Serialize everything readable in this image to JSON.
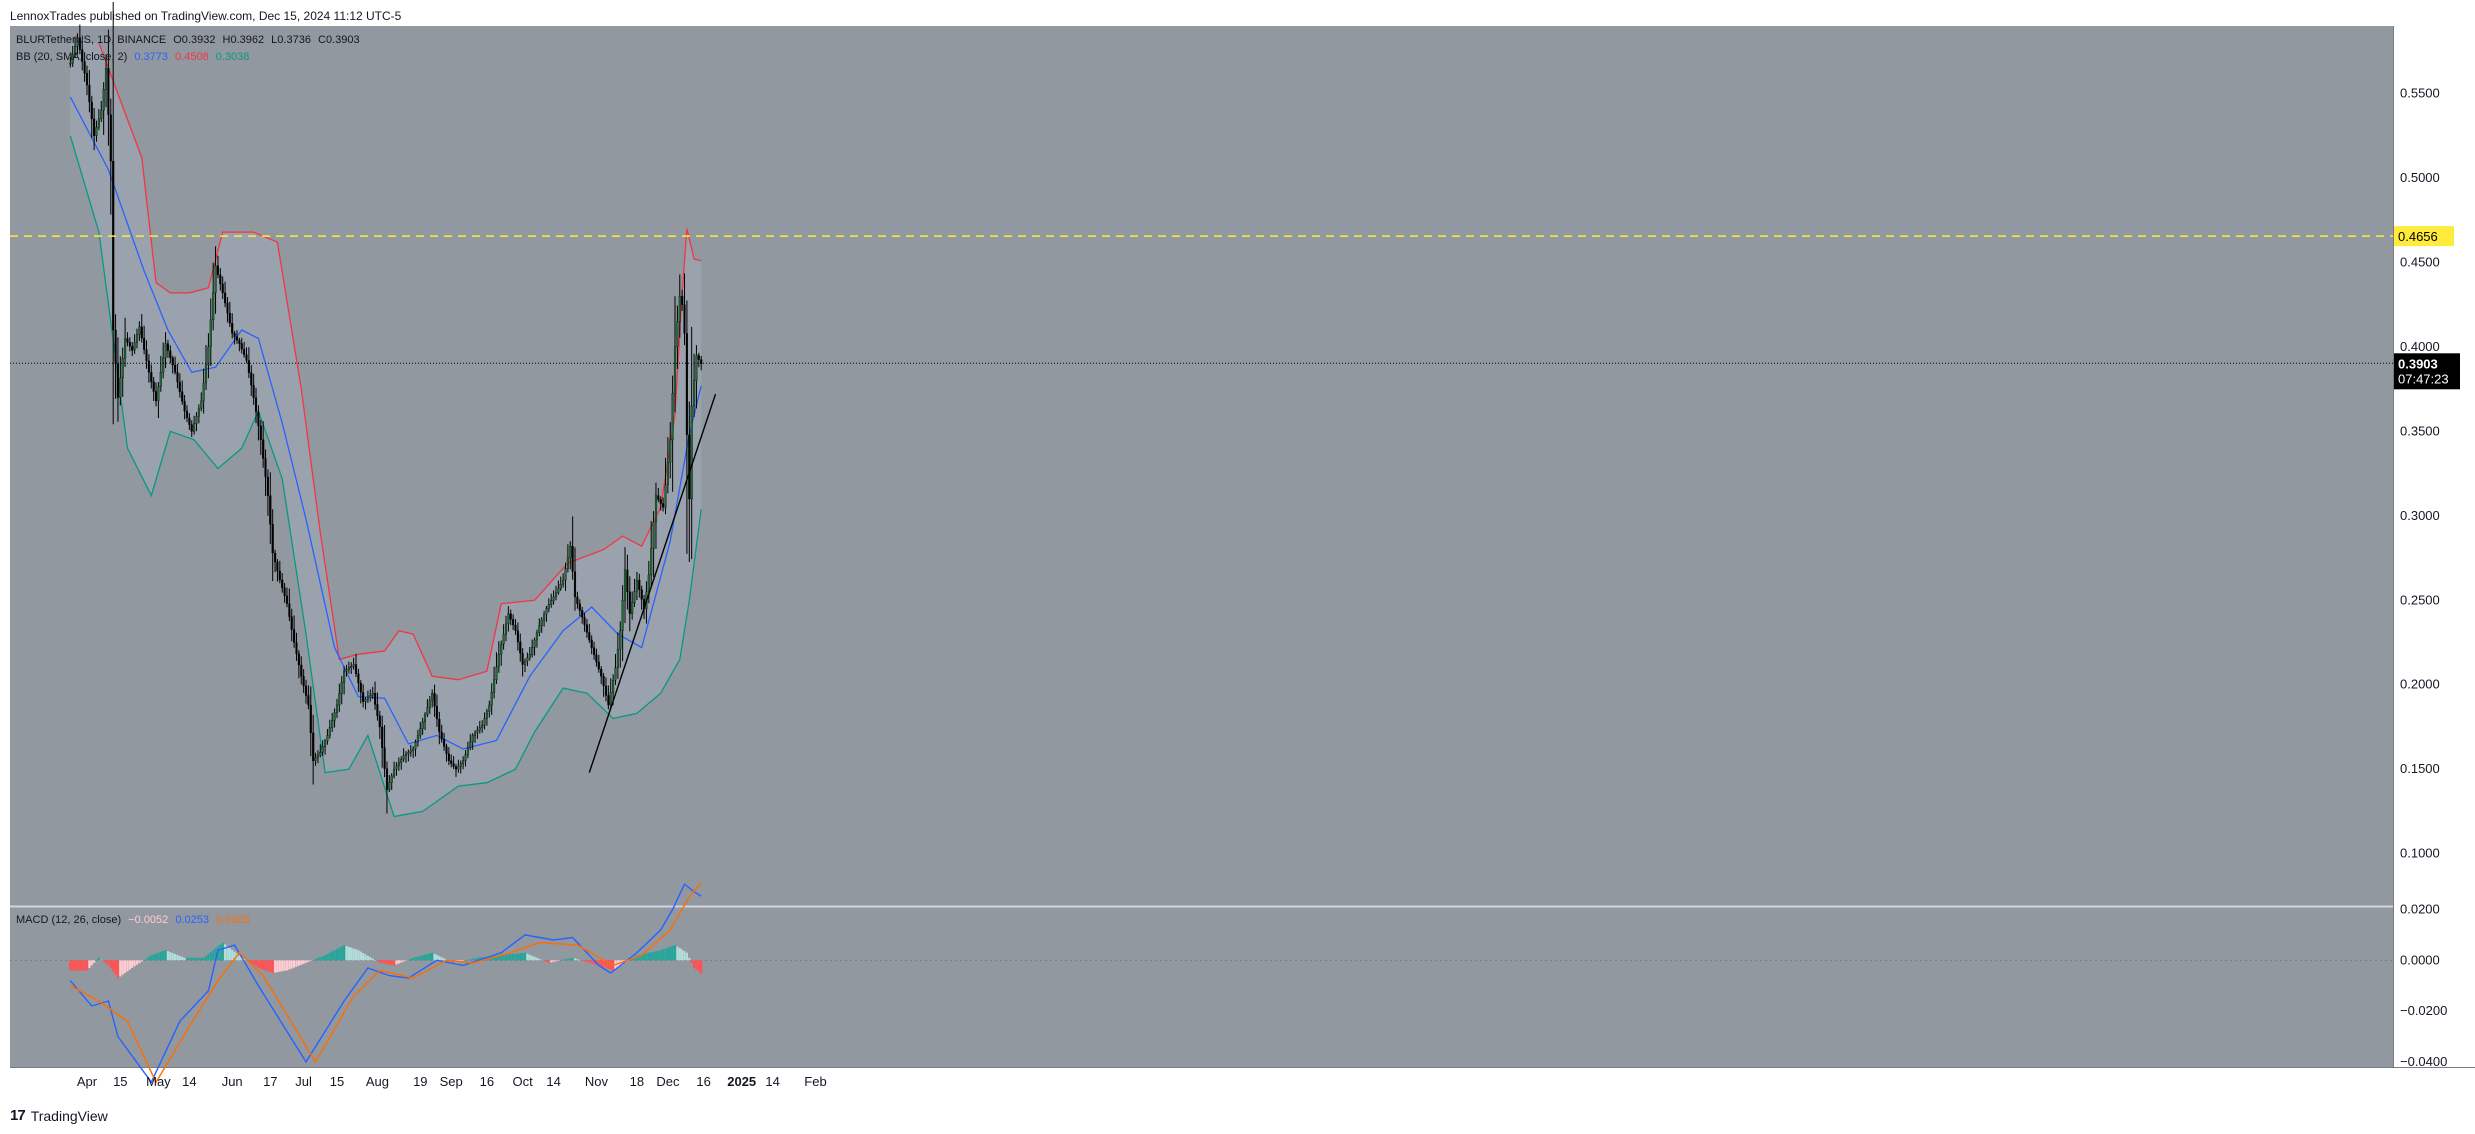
{
  "header": {
    "published": "LennoxTrades published on TradingView.com, Dec 15, 2024 11:12 UTC-5"
  },
  "footer": {
    "brand": "TradingView"
  },
  "colors": {
    "pane_bg": "#9298a0",
    "bb_fill": "#9ba6b1",
    "bb_upper": "#f23645",
    "bb_basis": "#2962ff",
    "bb_lower": "#089981",
    "candle_up": "#1e6b34",
    "candle_down": "#000000",
    "resistance": "#ffeb3b",
    "trendline": "#000000",
    "macd_line": "#2962ff",
    "signal_line": "#ff6d00",
    "hist_pos_strong": "#26a69a",
    "hist_pos_weak": "#b2dfdb",
    "hist_neg_strong": "#ff5252",
    "hist_neg_weak": "#ffcdd2"
  },
  "legend_main": {
    "symbol": "BLURTetherUS, 1D, BINANCE",
    "open": "O0.3932",
    "high": "H0.3962",
    "low": "L0.3736",
    "close": "C0.3903",
    "bb_label": "BB (20, SMA, close, 2)",
    "bb_basis": "0.3773",
    "bb_upper": "0.4508",
    "bb_lower": "0.3038"
  },
  "legend_macd": {
    "label": "MACD (12, 26, close)",
    "hist": "−0.0052",
    "macd": "0.0253",
    "signal": "0.0305"
  },
  "chart_data": {
    "type": "candlestick",
    "interval": "1D",
    "price_axis": {
      "ticks": [
        "0.5500",
        "0.5000",
        "0.4500",
        "0.4000",
        "0.3500",
        "0.3000",
        "0.2500",
        "0.2000",
        "0.1500",
        "0.1000"
      ],
      "ylim": [
        0.069,
        0.59
      ]
    },
    "x_axis": {
      "ticks": [
        "Apr",
        "15",
        "May",
        "14",
        "Jun",
        "17",
        "Jul",
        "15",
        "Aug",
        "19",
        "Sep",
        "16",
        "Oct",
        "14",
        "Nov",
        "18",
        "Dec",
        "16",
        "2025",
        "14",
        "Feb"
      ]
    },
    "last_price": {
      "value": 0.3903,
      "label": "0.3903",
      "countdown": "07:47:23"
    },
    "resistance": {
      "value": 0.4656,
      "label": "0.4656"
    },
    "trendline": {
      "from": {
        "x": "Oct 29",
        "y": 0.148
      },
      "to": {
        "x": "Dec 21",
        "y": 0.372
      }
    },
    "price_path": [
      [
        "Mar 25",
        0.568
      ],
      [
        "Mar 28",
        0.583
      ],
      [
        "Apr 1",
        0.555
      ],
      [
        "Apr 4",
        0.525
      ],
      [
        "Apr 7",
        0.54
      ],
      [
        "Apr 9",
        0.565
      ],
      [
        "Apr 11",
        0.51
      ],
      [
        "Apr 12",
        0.41
      ],
      [
        "Apr 14",
        0.37
      ],
      [
        "Apr 17",
        0.405
      ],
      [
        "Apr 20",
        0.398
      ],
      [
        "Apr 23",
        0.412
      ],
      [
        "Apr 27",
        0.385
      ],
      [
        "Apr 30",
        0.368
      ],
      [
        "May 4",
        0.402
      ],
      [
        "May 8",
        0.385
      ],
      [
        "May 12",
        0.362
      ],
      [
        "May 15",
        0.35
      ],
      [
        "May 19",
        0.368
      ],
      [
        "May 22",
        0.4
      ],
      [
        "May 25",
        0.448
      ],
      [
        "May 28",
        0.432
      ],
      [
        "Jun 1",
        0.408
      ],
      [
        "Jun 4",
        0.402
      ],
      [
        "Jun 7",
        0.392
      ],
      [
        "Jun 10",
        0.37
      ],
      [
        "Jun 13",
        0.345
      ],
      [
        "Jun 16",
        0.312
      ],
      [
        "Jun 18",
        0.278
      ],
      [
        "Jun 21",
        0.262
      ],
      [
        "Jun 24",
        0.248
      ],
      [
        "Jun 27",
        0.225
      ],
      [
        "Jun 30",
        0.205
      ],
      [
        "Jul 3",
        0.188
      ],
      [
        "Jul 5",
        0.155
      ],
      [
        "Jul 8",
        0.16
      ],
      [
        "Jul 11",
        0.17
      ],
      [
        "Jul 15",
        0.188
      ],
      [
        "Jul 18",
        0.208
      ],
      [
        "Jul 22",
        0.212
      ],
      [
        "Jul 26",
        0.19
      ],
      [
        "Jul 30",
        0.195
      ],
      [
        "Aug 2",
        0.175
      ],
      [
        "Aug 5",
        0.138
      ],
      [
        "Aug 8",
        0.15
      ],
      [
        "Aug 12",
        0.158
      ],
      [
        "Aug 16",
        0.162
      ],
      [
        "Aug 20",
        0.178
      ],
      [
        "Aug 24",
        0.195
      ],
      [
        "Aug 27",
        0.172
      ],
      [
        "Aug 31",
        0.155
      ],
      [
        "Sep 3",
        0.15
      ],
      [
        "Sep 6",
        0.155
      ],
      [
        "Sep 10",
        0.17
      ],
      [
        "Sep 14",
        0.176
      ],
      [
        "Sep 17",
        0.188
      ],
      [
        "Sep 21",
        0.218
      ],
      [
        "Sep 25",
        0.242
      ],
      [
        "Sep 28",
        0.232
      ],
      [
        "Oct 1",
        0.212
      ],
      [
        "Oct 4",
        0.218
      ],
      [
        "Oct 8",
        0.235
      ],
      [
        "Oct 11",
        0.245
      ],
      [
        "Oct 14",
        0.252
      ],
      [
        "Oct 18",
        0.262
      ],
      [
        "Oct 21",
        0.282
      ],
      [
        "Oct 23",
        0.252
      ],
      [
        "Oct 26",
        0.24
      ],
      [
        "Oct 30",
        0.222
      ],
      [
        "Nov 3",
        0.205
      ],
      [
        "Nov 6",
        0.188
      ],
      [
        "Nov 9",
        0.21
      ],
      [
        "Nov 11",
        0.232
      ],
      [
        "Nov 13",
        0.268
      ],
      [
        "Nov 15",
        0.242
      ],
      [
        "Nov 18",
        0.262
      ],
      [
        "Nov 21",
        0.245
      ],
      [
        "Nov 23",
        0.265
      ],
      [
        "Nov 26",
        0.312
      ],
      [
        "Nov 29",
        0.305
      ],
      [
        "Dec 2",
        0.345
      ],
      [
        "Dec 4",
        0.4
      ],
      [
        "Dec 6",
        0.43
      ],
      [
        "Dec 7",
        0.425
      ],
      [
        "Dec 8",
        0.408
      ],
      [
        "Dec 9",
        0.348
      ],
      [
        "Dec 10",
        0.31
      ],
      [
        "Dec 11",
        0.365
      ],
      [
        "Dec 13",
        0.395
      ],
      [
        "Dec 15",
        0.39
      ]
    ],
    "bb_upper": [
      [
        "Apr 6",
        0.58
      ],
      [
        "Apr 24",
        0.512
      ],
      [
        "Apr 30",
        0.438
      ],
      [
        "May 6",
        0.432
      ],
      [
        "May 14",
        0.432
      ],
      [
        "May 22",
        0.435
      ],
      [
        "May 28",
        0.468
      ],
      [
        "Jun 10",
        0.468
      ],
      [
        "Jun 20",
        0.462
      ],
      [
        "Jun 30",
        0.375
      ],
      [
        "Jul 8",
        0.29
      ],
      [
        "Jul 16",
        0.215
      ],
      [
        "Jul 24",
        0.218
      ],
      [
        "Aug 4",
        0.22
      ],
      [
        "Aug 10",
        0.232
      ],
      [
        "Aug 16",
        0.23
      ],
      [
        "Aug 24",
        0.205
      ],
      [
        "Sep 4",
        0.203
      ],
      [
        "Sep 16",
        0.208
      ],
      [
        "Sep 22",
        0.248
      ],
      [
        "Oct 6",
        0.25
      ],
      [
        "Oct 20",
        0.272
      ],
      [
        "Nov 4",
        0.28
      ],
      [
        "Nov 12",
        0.288
      ],
      [
        "Nov 20",
        0.282
      ],
      [
        "Nov 28",
        0.305
      ],
      [
        "Dec 4",
        0.36
      ],
      [
        "Dec 7",
        0.432
      ],
      [
        "Dec 9",
        0.47
      ],
      [
        "Dec 12",
        0.452
      ],
      [
        "Dec 15",
        0.451
      ]
    ],
    "bb_basis": [
      [
        "Mar 25",
        0.548
      ],
      [
        "Apr 10",
        0.505
      ],
      [
        "Apr 25",
        0.445
      ],
      [
        "May 5",
        0.41
      ],
      [
        "May 15",
        0.385
      ],
      [
        "May 25",
        0.388
      ],
      [
        "Jun 5",
        0.41
      ],
      [
        "Jun 12",
        0.405
      ],
      [
        "Jun 22",
        0.355
      ],
      [
        "Jul 2",
        0.298
      ],
      [
        "Jul 14",
        0.222
      ],
      [
        "Jul 24",
        0.193
      ],
      [
        "Aug 4",
        0.192
      ],
      [
        "Aug 14",
        0.165
      ],
      [
        "Aug 26",
        0.17
      ],
      [
        "Sep 6",
        0.162
      ],
      [
        "Sep 20",
        0.167
      ],
      [
        "Oct 4",
        0.205
      ],
      [
        "Oct 18",
        0.232
      ],
      [
        "Oct 30",
        0.246
      ],
      [
        "Nov 10",
        0.23
      ],
      [
        "Nov 20",
        0.222
      ],
      [
        "Dec 2",
        0.285
      ],
      [
        "Dec 10",
        0.348
      ],
      [
        "Dec 15",
        0.377
      ]
    ],
    "bb_lower": [
      [
        "Mar 25",
        0.525
      ],
      [
        "Apr 6",
        0.468
      ],
      [
        "Apr 18",
        0.34
      ],
      [
        "Apr 28",
        0.312
      ],
      [
        "May 6",
        0.35
      ],
      [
        "May 16",
        0.345
      ],
      [
        "May 26",
        0.328
      ],
      [
        "Jun 5",
        0.34
      ],
      [
        "Jun 12",
        0.362
      ],
      [
        "Jun 22",
        0.322
      ],
      [
        "Jul 2",
        0.23
      ],
      [
        "Jul 10",
        0.148
      ],
      [
        "Jul 20",
        0.15
      ],
      [
        "Jul 28",
        0.17
      ],
      [
        "Aug 8",
        0.122
      ],
      [
        "Aug 20",
        0.125
      ],
      [
        "Sep 4",
        0.14
      ],
      [
        "Sep 16",
        0.142
      ],
      [
        "Sep 28",
        0.15
      ],
      [
        "Oct 6",
        0.172
      ],
      [
        "Oct 18",
        0.198
      ],
      [
        "Oct 28",
        0.195
      ],
      [
        "Nov 8",
        0.18
      ],
      [
        "Nov 18",
        0.183
      ],
      [
        "Nov 28",
        0.195
      ],
      [
        "Dec 6",
        0.215
      ],
      [
        "Dec 10",
        0.25
      ],
      [
        "Dec 15",
        0.304
      ]
    ],
    "macd_axis": {
      "ticks": [
        "0.0200",
        "0.0000",
        "−0.0200",
        "−0.0400"
      ],
      "ylim": [
        -0.042,
        0.021
      ]
    },
    "macd_line": [
      [
        "Mar 25",
        -0.008
      ],
      [
        "Apr 3",
        -0.018
      ],
      [
        "Apr 10",
        -0.016
      ],
      [
        "Apr 14",
        -0.03
      ],
      [
        "Apr 28",
        -0.048
      ],
      [
        "May 10",
        -0.024
      ],
      [
        "May 22",
        -0.012
      ],
      [
        "May 26",
        0.004
      ],
      [
        "Jun 2",
        0.006
      ],
      [
        "Jun 12",
        -0.01
      ],
      [
        "Jul 2",
        -0.04
      ],
      [
        "Jul 18",
        -0.016
      ],
      [
        "Jul 28",
        -0.003
      ],
      [
        "Aug 6",
        -0.006
      ],
      [
        "Aug 14",
        -0.007
      ],
      [
        "Aug 26",
        0.0
      ],
      [
        "Sep 6",
        -0.002
      ],
      [
        "Sep 22",
        0.003
      ],
      [
        "Oct 2",
        0.01
      ],
      [
        "Oct 14",
        0.008
      ],
      [
        "Oct 22",
        0.009
      ],
      [
        "Nov 2",
        -0.002
      ],
      [
        "Nov 7",
        -0.005
      ],
      [
        "Nov 18",
        0.003
      ],
      [
        "Nov 28",
        0.012
      ],
      [
        "Dec 3",
        0.02
      ],
      [
        "Dec 8",
        0.03
      ],
      [
        "Dec 12",
        0.027
      ],
      [
        "Dec 15",
        0.0253
      ]
    ],
    "signal_line": [
      [
        "Mar 25",
        -0.01
      ],
      [
        "Apr 6",
        -0.016
      ],
      [
        "Apr 18",
        -0.024
      ],
      [
        "Apr 30",
        -0.048
      ],
      [
        "May 14",
        -0.026
      ],
      [
        "May 26",
        -0.008
      ],
      [
        "Jun 4",
        0.003
      ],
      [
        "Jun 14",
        -0.006
      ],
      [
        "Jul 6",
        -0.04
      ],
      [
        "Jul 22",
        -0.014
      ],
      [
        "Aug 2",
        -0.004
      ],
      [
        "Aug 16",
        -0.007
      ],
      [
        "Aug 30",
        0.0
      ],
      [
        "Sep 10",
        -0.001
      ],
      [
        "Sep 26",
        0.003
      ],
      [
        "Oct 8",
        0.007
      ],
      [
        "Oct 24",
        0.006
      ],
      [
        "Nov 8",
        -0.002
      ],
      [
        "Nov 20",
        0.002
      ],
      [
        "Dec 2",
        0.012
      ],
      [
        "Dec 10",
        0.025
      ],
      [
        "Dec 15",
        0.0305
      ]
    ],
    "macd_histogram": [
      [
        "Mar 25",
        -0.004
      ],
      [
        "Apr 1",
        -0.004
      ],
      [
        "Apr 6",
        0.001
      ],
      [
        "Apr 10",
        -0.002
      ],
      [
        "Apr 14",
        -0.007
      ],
      [
        "Apr 20",
        -0.003
      ],
      [
        "Apr 28",
        0.002
      ],
      [
        "May 4",
        0.004
      ],
      [
        "May 12",
        0.001
      ],
      [
        "May 20",
        0.001
      ],
      [
        "May 28",
        0.007
      ],
      [
        "Jun 4",
        0.002
      ],
      [
        "Jun 12",
        -0.003
      ],
      [
        "Jun 18",
        -0.005
      ],
      [
        "Jun 24",
        -0.004
      ],
      [
        "Jul 2",
        -0.001
      ],
      [
        "Jul 10",
        0.002
      ],
      [
        "Jul 18",
        0.006
      ],
      [
        "Jul 24",
        0.004
      ],
      [
        "Aug 2",
        -0.001
      ],
      [
        "Aug 8",
        -0.002
      ],
      [
        "Aug 16",
        0.001
      ],
      [
        "Aug 24",
        0.003
      ],
      [
        "Sep 2",
        -0.001
      ],
      [
        "Sep 12",
        0.001
      ],
      [
        "Sep 22",
        0.002
      ],
      [
        "Oct 2",
        0.003
      ],
      [
        "Oct 12",
        -0.001
      ],
      [
        "Oct 22",
        0.001
      ],
      [
        "Nov 2",
        -0.002
      ],
      [
        "Nov 8",
        -0.004
      ],
      [
        "Nov 18",
        0.002
      ],
      [
        "Nov 28",
        0.004
      ],
      [
        "Dec 4",
        0.006
      ],
      [
        "Dec 9",
        0.003
      ],
      [
        "Dec 12",
        -0.003
      ],
      [
        "Dec 15",
        -0.0052
      ]
    ]
  }
}
